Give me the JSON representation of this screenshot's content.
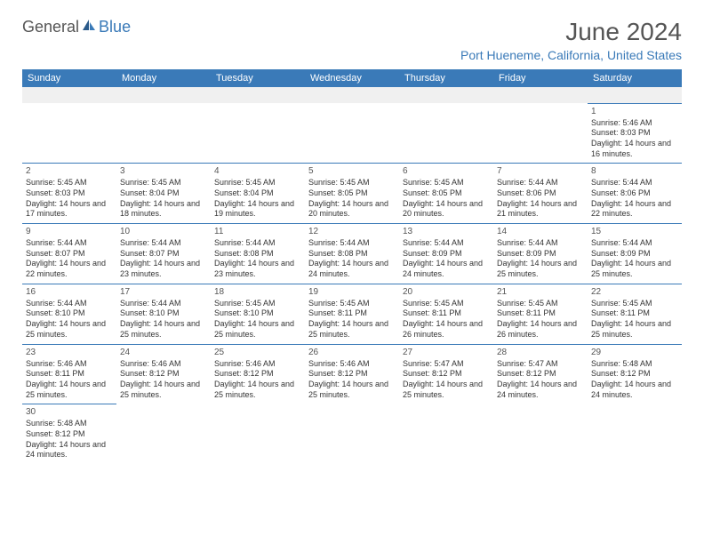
{
  "logo": {
    "general": "General",
    "blue": "Blue"
  },
  "title": "June 2024",
  "location": "Port Hueneme, California, United States",
  "daynames": [
    "Sunday",
    "Monday",
    "Tuesday",
    "Wednesday",
    "Thursday",
    "Friday",
    "Saturday"
  ],
  "colors": {
    "header_bg": "#3a7ab8",
    "text": "#333333",
    "title": "#555555"
  },
  "weeks": [
    [
      null,
      null,
      null,
      null,
      null,
      null,
      {
        "num": "1",
        "sunrise": "Sunrise: 5:46 AM",
        "sunset": "Sunset: 8:03 PM",
        "daylight": "Daylight: 14 hours and 16 minutes."
      }
    ],
    [
      {
        "num": "2",
        "sunrise": "Sunrise: 5:45 AM",
        "sunset": "Sunset: 8:03 PM",
        "daylight": "Daylight: 14 hours and 17 minutes."
      },
      {
        "num": "3",
        "sunrise": "Sunrise: 5:45 AM",
        "sunset": "Sunset: 8:04 PM",
        "daylight": "Daylight: 14 hours and 18 minutes."
      },
      {
        "num": "4",
        "sunrise": "Sunrise: 5:45 AM",
        "sunset": "Sunset: 8:04 PM",
        "daylight": "Daylight: 14 hours and 19 minutes."
      },
      {
        "num": "5",
        "sunrise": "Sunrise: 5:45 AM",
        "sunset": "Sunset: 8:05 PM",
        "daylight": "Daylight: 14 hours and 20 minutes."
      },
      {
        "num": "6",
        "sunrise": "Sunrise: 5:45 AM",
        "sunset": "Sunset: 8:05 PM",
        "daylight": "Daylight: 14 hours and 20 minutes."
      },
      {
        "num": "7",
        "sunrise": "Sunrise: 5:44 AM",
        "sunset": "Sunset: 8:06 PM",
        "daylight": "Daylight: 14 hours and 21 minutes."
      },
      {
        "num": "8",
        "sunrise": "Sunrise: 5:44 AM",
        "sunset": "Sunset: 8:06 PM",
        "daylight": "Daylight: 14 hours and 22 minutes."
      }
    ],
    [
      {
        "num": "9",
        "sunrise": "Sunrise: 5:44 AM",
        "sunset": "Sunset: 8:07 PM",
        "daylight": "Daylight: 14 hours and 22 minutes."
      },
      {
        "num": "10",
        "sunrise": "Sunrise: 5:44 AM",
        "sunset": "Sunset: 8:07 PM",
        "daylight": "Daylight: 14 hours and 23 minutes."
      },
      {
        "num": "11",
        "sunrise": "Sunrise: 5:44 AM",
        "sunset": "Sunset: 8:08 PM",
        "daylight": "Daylight: 14 hours and 23 minutes."
      },
      {
        "num": "12",
        "sunrise": "Sunrise: 5:44 AM",
        "sunset": "Sunset: 8:08 PM",
        "daylight": "Daylight: 14 hours and 24 minutes."
      },
      {
        "num": "13",
        "sunrise": "Sunrise: 5:44 AM",
        "sunset": "Sunset: 8:09 PM",
        "daylight": "Daylight: 14 hours and 24 minutes."
      },
      {
        "num": "14",
        "sunrise": "Sunrise: 5:44 AM",
        "sunset": "Sunset: 8:09 PM",
        "daylight": "Daylight: 14 hours and 25 minutes."
      },
      {
        "num": "15",
        "sunrise": "Sunrise: 5:44 AM",
        "sunset": "Sunset: 8:09 PM",
        "daylight": "Daylight: 14 hours and 25 minutes."
      }
    ],
    [
      {
        "num": "16",
        "sunrise": "Sunrise: 5:44 AM",
        "sunset": "Sunset: 8:10 PM",
        "daylight": "Daylight: 14 hours and 25 minutes."
      },
      {
        "num": "17",
        "sunrise": "Sunrise: 5:44 AM",
        "sunset": "Sunset: 8:10 PM",
        "daylight": "Daylight: 14 hours and 25 minutes."
      },
      {
        "num": "18",
        "sunrise": "Sunrise: 5:45 AM",
        "sunset": "Sunset: 8:10 PM",
        "daylight": "Daylight: 14 hours and 25 minutes."
      },
      {
        "num": "19",
        "sunrise": "Sunrise: 5:45 AM",
        "sunset": "Sunset: 8:11 PM",
        "daylight": "Daylight: 14 hours and 25 minutes."
      },
      {
        "num": "20",
        "sunrise": "Sunrise: 5:45 AM",
        "sunset": "Sunset: 8:11 PM",
        "daylight": "Daylight: 14 hours and 26 minutes."
      },
      {
        "num": "21",
        "sunrise": "Sunrise: 5:45 AM",
        "sunset": "Sunset: 8:11 PM",
        "daylight": "Daylight: 14 hours and 26 minutes."
      },
      {
        "num": "22",
        "sunrise": "Sunrise: 5:45 AM",
        "sunset": "Sunset: 8:11 PM",
        "daylight": "Daylight: 14 hours and 25 minutes."
      }
    ],
    [
      {
        "num": "23",
        "sunrise": "Sunrise: 5:46 AM",
        "sunset": "Sunset: 8:11 PM",
        "daylight": "Daylight: 14 hours and 25 minutes."
      },
      {
        "num": "24",
        "sunrise": "Sunrise: 5:46 AM",
        "sunset": "Sunset: 8:12 PM",
        "daylight": "Daylight: 14 hours and 25 minutes."
      },
      {
        "num": "25",
        "sunrise": "Sunrise: 5:46 AM",
        "sunset": "Sunset: 8:12 PM",
        "daylight": "Daylight: 14 hours and 25 minutes."
      },
      {
        "num": "26",
        "sunrise": "Sunrise: 5:46 AM",
        "sunset": "Sunset: 8:12 PM",
        "daylight": "Daylight: 14 hours and 25 minutes."
      },
      {
        "num": "27",
        "sunrise": "Sunrise: 5:47 AM",
        "sunset": "Sunset: 8:12 PM",
        "daylight": "Daylight: 14 hours and 25 minutes."
      },
      {
        "num": "28",
        "sunrise": "Sunrise: 5:47 AM",
        "sunset": "Sunset: 8:12 PM",
        "daylight": "Daylight: 14 hours and 24 minutes."
      },
      {
        "num": "29",
        "sunrise": "Sunrise: 5:48 AM",
        "sunset": "Sunset: 8:12 PM",
        "daylight": "Daylight: 14 hours and 24 minutes."
      }
    ],
    [
      {
        "num": "30",
        "sunrise": "Sunrise: 5:48 AM",
        "sunset": "Sunset: 8:12 PM",
        "daylight": "Daylight: 14 hours and 24 minutes."
      },
      null,
      null,
      null,
      null,
      null,
      null
    ]
  ]
}
